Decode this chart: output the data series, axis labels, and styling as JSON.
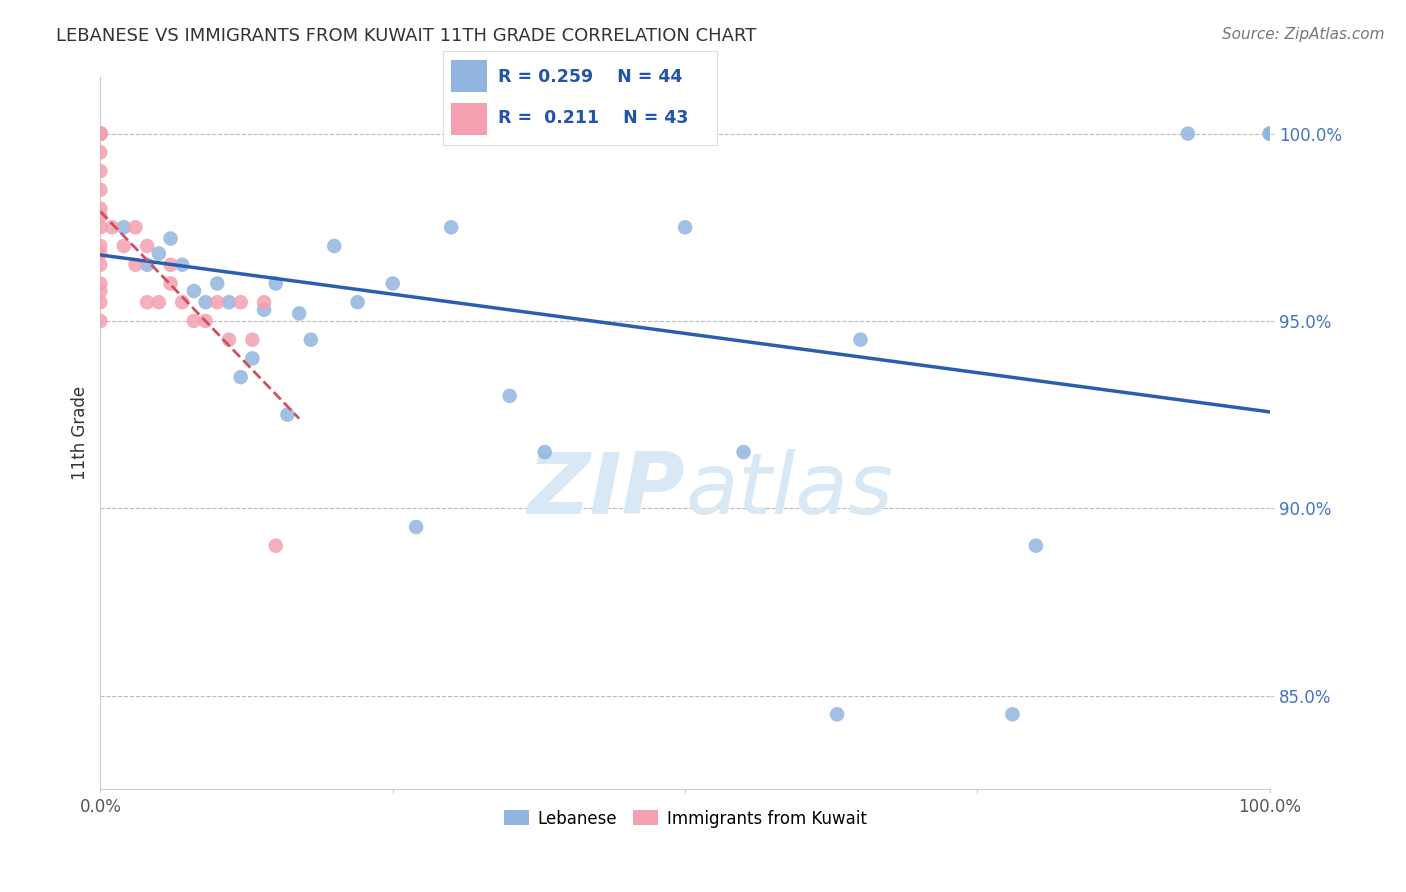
{
  "title": "LEBANESE VS IMMIGRANTS FROM KUWAIT 11TH GRADE CORRELATION CHART",
  "source": "Source: ZipAtlas.com",
  "ylabel": "11th Grade",
  "xlim": [
    0.0,
    1.0
  ],
  "ylim": [
    82.5,
    101.5
  ],
  "blue_R": 0.259,
  "blue_N": 44,
  "pink_R": 0.211,
  "pink_N": 43,
  "blue_color": "#92b4e0",
  "pink_color": "#f4a0b0",
  "blue_line_color": "#2b5fad",
  "pink_line_color": "#d05060",
  "grid_color": "#bbbbbb",
  "background_color": "#ffffff",
  "watermark_color": "#d8e8f5",
  "blue_x": [
    0.0,
    0.0,
    0.0,
    0.0,
    0.0,
    0.0,
    0.0,
    0.02,
    0.04,
    0.05,
    0.06,
    0.07,
    0.08,
    0.09,
    0.1,
    0.11,
    0.12,
    0.13,
    0.14,
    0.15,
    0.16,
    0.17,
    0.18,
    0.2,
    0.22,
    0.25,
    0.27,
    0.3,
    0.35,
    0.38,
    0.5,
    0.55,
    0.63,
    0.65,
    0.78,
    0.8,
    0.93,
    1.0,
    1.0
  ],
  "blue_y": [
    100.0,
    100.0,
    100.0,
    100.0,
    100.0,
    100.0,
    100.0,
    97.5,
    96.5,
    96.8,
    97.2,
    96.5,
    95.8,
    95.5,
    96.0,
    95.5,
    93.5,
    94.0,
    95.3,
    96.0,
    92.5,
    95.2,
    94.5,
    97.0,
    95.5,
    96.0,
    89.5,
    97.5,
    93.0,
    91.5,
    97.5,
    91.5,
    84.5,
    94.5,
    84.5,
    89.0,
    100.0,
    100.0,
    100.0
  ],
  "pink_x": [
    0.0,
    0.0,
    0.0,
    0.0,
    0.0,
    0.0,
    0.0,
    0.0,
    0.0,
    0.0,
    0.0,
    0.0,
    0.0,
    0.0,
    0.0,
    0.0,
    0.0,
    0.0,
    0.01,
    0.02,
    0.03,
    0.03,
    0.04,
    0.04,
    0.05,
    0.06,
    0.06,
    0.07,
    0.08,
    0.09,
    0.1,
    0.11,
    0.12,
    0.13,
    0.14,
    0.15
  ],
  "pink_y": [
    100.0,
    100.0,
    100.0,
    100.0,
    100.0,
    99.5,
    99.0,
    98.5,
    98.0,
    97.8,
    97.5,
    97.0,
    96.8,
    96.5,
    96.0,
    95.8,
    95.5,
    95.0,
    97.5,
    97.0,
    97.5,
    96.5,
    97.0,
    95.5,
    95.5,
    96.5,
    96.0,
    95.5,
    95.0,
    95.0,
    95.5,
    94.5,
    95.5,
    94.5,
    95.5,
    89.0
  ],
  "legend_labels": [
    "Lebanese",
    "Immigrants from Kuwait"
  ]
}
